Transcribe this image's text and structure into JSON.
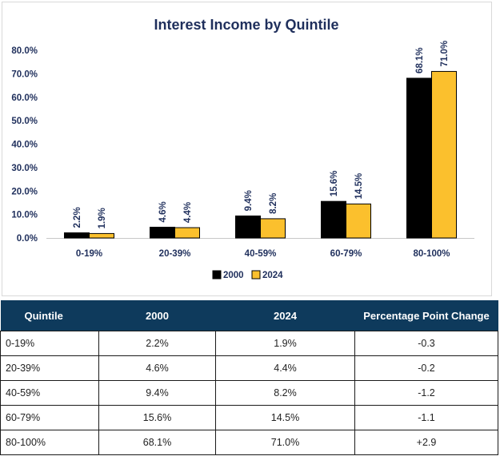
{
  "chart_data": {
    "type": "bar",
    "title": "Interest Income by Quintile",
    "categories": [
      "0-19%",
      "20-39%",
      "40-59%",
      "60-79%",
      "80-100%"
    ],
    "series": [
      {
        "name": "2000",
        "values": [
          2.2,
          4.6,
          9.4,
          15.6,
          68.1
        ],
        "labels": [
          "2.2%",
          "4.6%",
          "9.4%",
          "15.6%",
          "68.1%"
        ],
        "color": "#000000"
      },
      {
        "name": "2024",
        "values": [
          1.9,
          4.4,
          8.2,
          14.5,
          71.0
        ],
        "labels": [
          "1.9%",
          "4.4%",
          "8.2%",
          "14.5%",
          "71.0%"
        ],
        "color": "#fbc02d"
      }
    ],
    "ylim": [
      0,
      80
    ],
    "yticks": [
      "0.0%",
      "10.0%",
      "20.0%",
      "30.0%",
      "40.0%",
      "50.0%",
      "60.0%",
      "70.0%",
      "80.0%"
    ],
    "legend": "bottom",
    "grid": false
  },
  "table": {
    "headers": [
      "Quintile",
      "2000",
      "2024",
      "Percentage Point Change"
    ],
    "rows": [
      [
        "0-19%",
        "2.2%",
        "1.9%",
        "-0.3"
      ],
      [
        "20-39%",
        "4.6%",
        "4.4%",
        "-0.2"
      ],
      [
        "40-59%",
        "9.4%",
        "8.2%",
        "-1.2"
      ],
      [
        "60-79%",
        "15.6%",
        "14.5%",
        "-1.1"
      ],
      [
        "80-100%",
        "68.1%",
        "71.0%",
        "+2.9"
      ]
    ]
  }
}
